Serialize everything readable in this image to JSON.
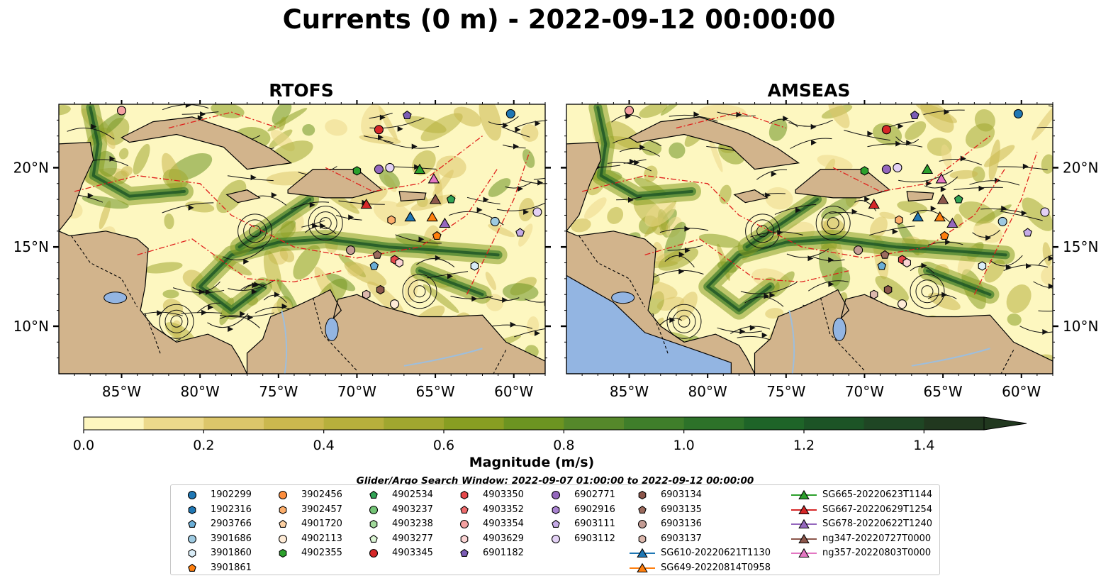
{
  "title": "Currents (0 m) - 2022-09-12 00:00:00",
  "panels": [
    {
      "title": "RTOFS"
    },
    {
      "title": "AMSEAS"
    }
  ],
  "map": {
    "lon_range": [
      -89,
      -58
    ],
    "lat_range": [
      7,
      24
    ],
    "lon_ticks": [
      "85°W",
      "80°W",
      "75°W",
      "70°W",
      "65°W",
      "60°W"
    ],
    "lat_ticks": [
      "20°N",
      "15°N",
      "10°N"
    ],
    "land_color": "#d2b48c",
    "ocean_low_color": "#fdf7c0",
    "ocean_high_color": "#1d2a17",
    "eez_color": "#e0201c",
    "river_color": "#9dbedd"
  },
  "colorbar": {
    "label": "Magnitude (m/s)",
    "ticks": [
      "0.0",
      "0.2",
      "0.4",
      "0.6",
      "0.8",
      "1.0",
      "1.2",
      "1.4"
    ],
    "range": [
      0,
      1.5
    ],
    "colors": [
      "#fdf6bf",
      "#ecd98b",
      "#dcc66a",
      "#cbb84e",
      "#b7b03c",
      "#a0a72f",
      "#889e22",
      "#6c9421",
      "#55882a",
      "#3f7e2a",
      "#2d7229",
      "#1e6428",
      "#1c5426",
      "#1f4624",
      "#21381f"
    ],
    "extend": "max"
  },
  "legend": {
    "window_note": "Glider/Argo Search Window: 2022-09-07 01:00:00 to 2022-09-12 00:00:00",
    "items": [
      {
        "label": "1902299",
        "marker": "circle",
        "color": "#1f77b4"
      },
      {
        "label": "1902316",
        "marker": "hexagon",
        "color": "#1f77b4"
      },
      {
        "label": "2903766",
        "marker": "pentagon",
        "color": "#6baed6"
      },
      {
        "label": "3901686",
        "marker": "circle",
        "color": "#9ecae1"
      },
      {
        "label": "3901860",
        "marker": "hexagon",
        "color": "#d9ecf7"
      },
      {
        "label": "3901861",
        "marker": "pentagon",
        "color": "#ff7f0e"
      },
      {
        "label": "3902456",
        "marker": "circle",
        "color": "#fd8d3c"
      },
      {
        "label": "3902457",
        "marker": "hexagon",
        "color": "#fdae6b"
      },
      {
        "label": "4901720",
        "marker": "pentagon",
        "color": "#fdd0a2"
      },
      {
        "label": "4902113",
        "marker": "circle",
        "color": "#feebd6"
      },
      {
        "label": "4902355",
        "marker": "hexagon",
        "color": "#2ca02c"
      },
      {
        "label": "4902534",
        "marker": "pentagon",
        "color": "#31a354"
      },
      {
        "label": "4903237",
        "marker": "circle",
        "color": "#74c476"
      },
      {
        "label": "4903238",
        "marker": "hexagon",
        "color": "#a1d99b"
      },
      {
        "label": "4903277",
        "marker": "pentagon",
        "color": "#dcf5d4"
      },
      {
        "label": "4903345",
        "marker": "circle",
        "color": "#d62728"
      },
      {
        "label": "4903350",
        "marker": "hexagon",
        "color": "#e6474a"
      },
      {
        "label": "4903352",
        "marker": "pentagon",
        "color": "#ef6b6d"
      },
      {
        "label": "4903354",
        "marker": "circle",
        "color": "#f4a0a0"
      },
      {
        "label": "4903629",
        "marker": "hexagon",
        "color": "#fcd5d5"
      },
      {
        "label": "6901182",
        "marker": "pentagon",
        "color": "#7b5cb5"
      },
      {
        "label": "6902771",
        "marker": "circle",
        "color": "#9467bd"
      },
      {
        "label": "6902916",
        "marker": "hexagon",
        "color": "#a983d1"
      },
      {
        "label": "6903111",
        "marker": "pentagon",
        "color": "#c5aae6"
      },
      {
        "label": "6903112",
        "marker": "circle",
        "color": "#e3d1f5"
      },
      {
        "label": "6903134",
        "marker": "hexagon",
        "color": "#8c564b"
      },
      {
        "label": "6903135",
        "marker": "pentagon",
        "color": "#9c6b5e"
      },
      {
        "label": "6903136",
        "marker": "circle",
        "color": "#c49c94"
      },
      {
        "label": "6903137",
        "marker": "hexagon",
        "color": "#dcb8ad"
      },
      {
        "label": "SG610-20220621T1130",
        "marker": "triangle",
        "color": "#1f77b4",
        "line": true
      },
      {
        "label": "SG649-20220814T0958",
        "marker": "triangle",
        "color": "#ff7f0e",
        "line": true
      },
      {
        "label": "SG665-20220623T1144",
        "marker": "triangle",
        "color": "#2ca02c",
        "line": true
      },
      {
        "label": "SG667-20220629T1254",
        "marker": "triangle",
        "color": "#d62728",
        "line": true
      },
      {
        "label": "SG678-20220622T1240",
        "marker": "triangle",
        "color": "#9467bd",
        "line": true
      },
      {
        "label": "ng347-20220727T0000",
        "marker": "triangle",
        "color": "#8c564b",
        "line": true
      },
      {
        "label": "ng357-20220803T0000",
        "marker": "triangle",
        "color": "#e377c2",
        "line": true
      }
    ]
  },
  "platforms": [
    {
      "label": "1902299",
      "lon": -60.2,
      "lat": 23.4
    },
    {
      "label": "4903354",
      "lon": -85.0,
      "lat": 23.6
    },
    {
      "label": "6901182",
      "lon": -66.8,
      "lat": 23.3
    },
    {
      "label": "4903345",
      "lon": -68.6,
      "lat": 22.4
    },
    {
      "label": "4902355",
      "lon": -70.0,
      "lat": 19.8
    },
    {
      "label": "6902771",
      "lon": -68.6,
      "lat": 19.9
    },
    {
      "label": "6903112",
      "lon": -67.9,
      "lat": 20.0
    },
    {
      "label": "SG665-20220623T1144",
      "lon": -66.0,
      "lat": 19.9
    },
    {
      "label": "ng357-20220803T0000",
      "lon": -65.1,
      "lat": 19.3
    },
    {
      "label": "4902534",
      "lon": -64.0,
      "lat": 18.0
    },
    {
      "label": "ng347-20220727T0000",
      "lon": -65.0,
      "lat": 18.0
    },
    {
      "label": "SG667-20220629T1254",
      "lon": -69.4,
      "lat": 17.7
    },
    {
      "label": "3902457",
      "lon": -67.8,
      "lat": 16.7
    },
    {
      "label": "SG610-20220621T1130",
      "lon": -66.6,
      "lat": 16.9
    },
    {
      "label": "SG649-20220814T0958",
      "lon": -65.2,
      "lat": 16.9
    },
    {
      "label": "SG678-20220622T1240",
      "lon": -64.4,
      "lat": 16.5
    },
    {
      "label": "3901861",
      "lon": -64.9,
      "lat": 15.7
    },
    {
      "label": "3901686",
      "lon": -61.2,
      "lat": 16.6
    },
    {
      "label": "6903111",
      "lon": -59.6,
      "lat": 15.9
    },
    {
      "label": "6903112",
      "lon": -58.5,
      "lat": 17.2
    },
    {
      "label": "6903136",
      "lon": -70.4,
      "lat": 14.8
    },
    {
      "label": "6903135",
      "lon": -68.7,
      "lat": 14.5
    },
    {
      "label": "4903350",
      "lon": -67.6,
      "lat": 14.2
    },
    {
      "label": "4903629",
      "lon": -67.3,
      "lat": 14.0
    },
    {
      "label": "2903766",
      "lon": -68.9,
      "lat": 13.8
    },
    {
      "label": "3901860",
      "lon": -62.5,
      "lat": 13.8
    },
    {
      "label": "6903137",
      "lon": -69.4,
      "lat": 12.0
    },
    {
      "label": "6903134",
      "lon": -68.5,
      "lat": 12.3
    },
    {
      "label": "4902113",
      "lon": -67.6,
      "lat": 11.4
    }
  ]
}
